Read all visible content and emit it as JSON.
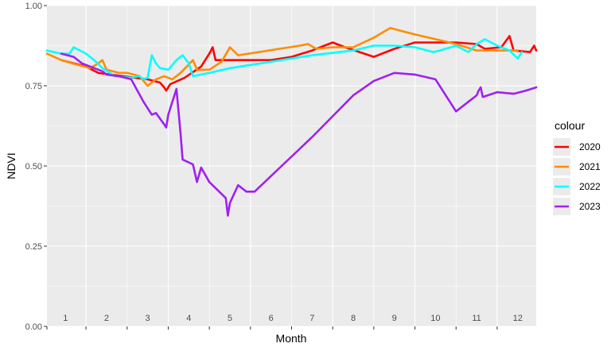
{
  "chart_data": {
    "type": "line",
    "title": "",
    "xlabel": "Month",
    "ylabel": "NDVI",
    "xlim": [
      0.55,
      12.45
    ],
    "ylim": [
      0,
      1
    ],
    "x_tick_labels": [
      "1",
      "2",
      "3",
      "4",
      "5",
      "6",
      "7",
      "8",
      "9",
      "10",
      "11",
      "12"
    ],
    "y_ticks": [
      0,
      0.25,
      0.5,
      0.75,
      1
    ],
    "y_tick_labels": [
      "0.00",
      "0.25",
      "0.50",
      "0.75",
      "1.00"
    ],
    "grid": true,
    "legend_title": "colour",
    "legend_position": "right",
    "series": [
      {
        "name": "2020",
        "color": "#ff0000",
        "points": [
          [
            0.9,
            0.83
          ],
          [
            1.2,
            0.82
          ],
          [
            1.5,
            0.81
          ],
          [
            1.8,
            0.79
          ],
          [
            2.1,
            0.785
          ],
          [
            2.4,
            0.78
          ],
          [
            2.7,
            0.775
          ],
          [
            3.0,
            0.77
          ],
          [
            3.3,
            0.76
          ],
          [
            3.4,
            0.745
          ],
          [
            3.45,
            0.735
          ],
          [
            3.55,
            0.755
          ],
          [
            3.9,
            0.775
          ],
          [
            4.3,
            0.81
          ],
          [
            4.5,
            0.85
          ],
          [
            4.58,
            0.87
          ],
          [
            4.65,
            0.83
          ],
          [
            5.0,
            0.83
          ],
          [
            5.5,
            0.83
          ],
          [
            6.0,
            0.83
          ],
          [
            6.5,
            0.84
          ],
          [
            7.0,
            0.86
          ],
          [
            7.3,
            0.875
          ],
          [
            7.5,
            0.885
          ],
          [
            7.8,
            0.87
          ],
          [
            8.5,
            0.84
          ],
          [
            9.0,
            0.865
          ],
          [
            9.5,
            0.885
          ],
          [
            10.0,
            0.885
          ],
          [
            10.5,
            0.885
          ],
          [
            11.0,
            0.88
          ],
          [
            11.2,
            0.865
          ],
          [
            11.6,
            0.87
          ],
          [
            11.8,
            0.905
          ],
          [
            11.9,
            0.86
          ],
          [
            12.3,
            0.855
          ],
          [
            12.4,
            0.875
          ],
          [
            12.45,
            0.86
          ]
        ]
      },
      {
        "name": "2021",
        "color": "#ff8c00",
        "points": [
          [
            0.55,
            0.85
          ],
          [
            0.9,
            0.83
          ],
          [
            1.3,
            0.815
          ],
          [
            1.6,
            0.805
          ],
          [
            1.8,
            0.82
          ],
          [
            1.9,
            0.83
          ],
          [
            2.0,
            0.8
          ],
          [
            2.3,
            0.79
          ],
          [
            2.5,
            0.79
          ],
          [
            2.8,
            0.78
          ],
          [
            3.0,
            0.75
          ],
          [
            3.2,
            0.77
          ],
          [
            3.4,
            0.78
          ],
          [
            3.6,
            0.77
          ],
          [
            3.8,
            0.79
          ],
          [
            4.1,
            0.83
          ],
          [
            4.2,
            0.8
          ],
          [
            4.5,
            0.8
          ],
          [
            4.8,
            0.825
          ],
          [
            5.0,
            0.87
          ],
          [
            5.2,
            0.845
          ],
          [
            5.7,
            0.855
          ],
          [
            6.2,
            0.865
          ],
          [
            6.7,
            0.875
          ],
          [
            6.9,
            0.88
          ],
          [
            7.1,
            0.865
          ],
          [
            7.5,
            0.87
          ],
          [
            8.0,
            0.87
          ],
          [
            8.5,
            0.9
          ],
          [
            8.9,
            0.93
          ],
          [
            9.5,
            0.91
          ],
          [
            10.0,
            0.895
          ],
          [
            10.5,
            0.88
          ],
          [
            11.0,
            0.86
          ],
          [
            11.5,
            0.86
          ],
          [
            12.0,
            0.86
          ]
        ]
      },
      {
        "name": "2022",
        "color": "#00ffff",
        "points": [
          [
            0.55,
            0.86
          ],
          [
            0.9,
            0.85
          ],
          [
            1.1,
            0.85
          ],
          [
            1.2,
            0.87
          ],
          [
            1.5,
            0.85
          ],
          [
            1.7,
            0.83
          ],
          [
            1.9,
            0.805
          ],
          [
            2.2,
            0.78
          ],
          [
            2.6,
            0.775
          ],
          [
            2.8,
            0.78
          ],
          [
            2.9,
            0.77
          ],
          [
            3.0,
            0.775
          ],
          [
            3.1,
            0.845
          ],
          [
            3.2,
            0.82
          ],
          [
            3.3,
            0.805
          ],
          [
            3.5,
            0.8
          ],
          [
            3.7,
            0.83
          ],
          [
            3.85,
            0.845
          ],
          [
            4.0,
            0.82
          ],
          [
            4.1,
            0.78
          ],
          [
            4.5,
            0.79
          ],
          [
            5.0,
            0.805
          ],
          [
            6.0,
            0.825
          ],
          [
            7.0,
            0.845
          ],
          [
            8.0,
            0.86
          ],
          [
            8.5,
            0.875
          ],
          [
            9.0,
            0.875
          ],
          [
            9.5,
            0.87
          ],
          [
            9.95,
            0.855
          ],
          [
            10.1,
            0.86
          ],
          [
            10.5,
            0.875
          ],
          [
            10.8,
            0.855
          ],
          [
            11.0,
            0.88
          ],
          [
            11.2,
            0.895
          ],
          [
            11.5,
            0.875
          ],
          [
            11.8,
            0.86
          ],
          [
            12.0,
            0.835
          ],
          [
            12.1,
            0.855
          ]
        ]
      },
      {
        "name": "2023",
        "color": "#a020f0",
        "points": [
          [
            0.9,
            0.85
          ],
          [
            1.2,
            0.84
          ],
          [
            1.4,
            0.82
          ],
          [
            1.6,
            0.81
          ],
          [
            1.9,
            0.795
          ],
          [
            2.0,
            0.785
          ],
          [
            2.3,
            0.78
          ],
          [
            2.6,
            0.77
          ],
          [
            2.9,
            0.7
          ],
          [
            3.1,
            0.66
          ],
          [
            3.2,
            0.665
          ],
          [
            3.4,
            0.63
          ],
          [
            3.45,
            0.62
          ],
          [
            3.5,
            0.66
          ],
          [
            3.7,
            0.74
          ],
          [
            3.8,
            0.6
          ],
          [
            3.85,
            0.52
          ],
          [
            4.1,
            0.505
          ],
          [
            4.2,
            0.45
          ],
          [
            4.3,
            0.495
          ],
          [
            4.5,
            0.45
          ],
          [
            4.9,
            0.4
          ],
          [
            4.95,
            0.345
          ],
          [
            5.0,
            0.385
          ],
          [
            5.2,
            0.44
          ],
          [
            5.4,
            0.42
          ],
          [
            5.6,
            0.42
          ],
          [
            7.0,
            0.59
          ],
          [
            8.0,
            0.72
          ],
          [
            8.5,
            0.765
          ],
          [
            9.0,
            0.79
          ],
          [
            9.5,
            0.785
          ],
          [
            10.0,
            0.77
          ],
          [
            10.5,
            0.67
          ],
          [
            10.8,
            0.7
          ],
          [
            11.0,
            0.72
          ],
          [
            11.05,
            0.735
          ],
          [
            11.1,
            0.745
          ],
          [
            11.15,
            0.715
          ],
          [
            11.5,
            0.73
          ],
          [
            11.9,
            0.725
          ],
          [
            12.2,
            0.735
          ],
          [
            12.45,
            0.745
          ]
        ]
      }
    ]
  }
}
